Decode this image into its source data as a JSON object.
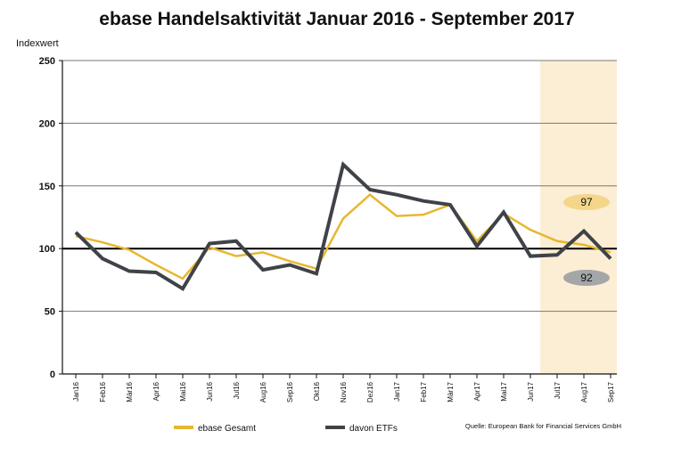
{
  "chart_data": {
    "type": "line",
    "title": "ebase Handelsaktivität Januar 2016 - September 2017",
    "ylabel": "Indexwert",
    "xlabel": "",
    "ylim": [
      0,
      250
    ],
    "yticks": [
      0,
      50,
      100,
      150,
      200,
      250
    ],
    "grid": "horizontal",
    "reference_line": 100,
    "highlight_range": [
      "Jul17",
      "Sep17"
    ],
    "categories": [
      "Jan16",
      "Feb16",
      "Mär16",
      "Apr16",
      "Mai16",
      "Jun16",
      "Jul16",
      "Aug16",
      "Sep16",
      "Okt16",
      "Nov16",
      "Dez16",
      "Jan17",
      "Feb17",
      "Mär17",
      "Apr17",
      "Mai17",
      "Jun17",
      "Jul17",
      "Aug17",
      "Sep17"
    ],
    "series": [
      {
        "name": "ebase Gesamt",
        "color": "#e8b730",
        "values": [
          110,
          105,
          99,
          87,
          76,
          101,
          94,
          97,
          90,
          84,
          124,
          143,
          126,
          127,
          135,
          106,
          128,
          115,
          106,
          103,
          97
        ]
      },
      {
        "name": "davon ETFs",
        "color": "#3f4348",
        "values": [
          113,
          92,
          82,
          81,
          68,
          104,
          106,
          83,
          87,
          80,
          167,
          147,
          143,
          138,
          135,
          102,
          129,
          94,
          95,
          114,
          92
        ]
      }
    ],
    "annotations": [
      {
        "text": "97",
        "color": "#f3d68a"
      },
      {
        "text": "92",
        "color": "#a5a6a8"
      }
    ],
    "highlight_color": "#fbeed5",
    "legend_placement": "bottom",
    "source": "Quelle: European Bank for Financial Services GmbH"
  }
}
